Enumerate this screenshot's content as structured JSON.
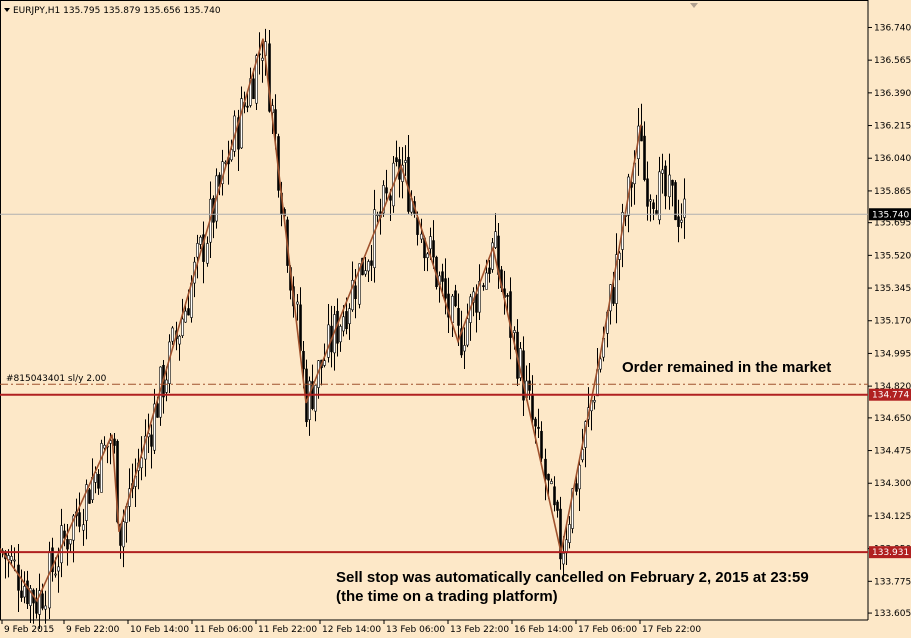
{
  "header": {
    "symbol_label": "EURJPY,H1",
    "ohlc": "135.795 135.879 135.656 135.740"
  },
  "chart_data": {
    "type": "candlestick",
    "symbol": "EURJPY",
    "timeframe": "H1",
    "ylim": [
      133.6,
      136.78
    ],
    "price_ticks": [
      "136.740",
      "136.565",
      "136.390",
      "136.215",
      "136.040",
      "135.865",
      "135.695",
      "135.520",
      "135.345",
      "135.170",
      "134.995",
      "134.820",
      "134.650",
      "134.475",
      "134.300",
      "134.125",
      "133.950",
      "133.775",
      "133.605"
    ],
    "time_ticks": [
      "9 Feb 2015",
      "9 Feb 22:00",
      "10 Feb 14:00",
      "11 Feb 06:00",
      "11 Feb 22:00",
      "12 Feb 14:00",
      "13 Feb 06:00",
      "13 Feb 22:00",
      "16 Feb 14:00",
      "17 Feb 06:00",
      "17 Feb 22:00"
    ],
    "current_price": {
      "value": 135.74,
      "label": "135.740"
    },
    "order": {
      "value": 134.83,
      "label": "#815043401 sl/y 2.00"
    },
    "levels": [
      {
        "value": 134.774,
        "label": "134.774",
        "color": "#b02020"
      },
      {
        "value": 133.931,
        "label": "133.931",
        "color": "#b02020"
      }
    ],
    "zigzag": [
      [
        0,
        133.95
      ],
      [
        37,
        133.67
      ],
      [
        112,
        134.56
      ],
      [
        119,
        134.04
      ],
      [
        263,
        136.68
      ],
      [
        306,
        134.73
      ],
      [
        401,
        136.0
      ],
      [
        458,
        135.06
      ],
      [
        493,
        135.56
      ],
      [
        561,
        133.93
      ],
      [
        600,
        134.98
      ],
      [
        641,
        136.22
      ]
    ],
    "annotations": {
      "order_remained": "Order remained in the market",
      "sell_stop_1": "Sell stop was automatically cancelled on February 2, 2015 at 23:59",
      "sell_stop_2": "(the time on a trading platform)"
    },
    "colors": {
      "background": "#fde8c8",
      "candle_up": "#ffffff",
      "candle_down": "#000000",
      "zigzag": "#a0522d",
      "level": "#b02020"
    }
  }
}
